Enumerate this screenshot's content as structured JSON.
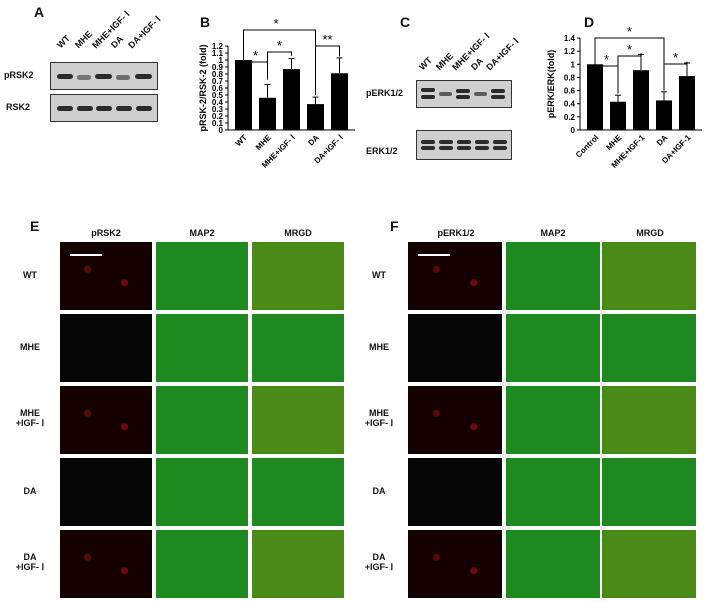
{
  "panels": {
    "a": "A",
    "b": "B",
    "c": "C",
    "d": "D",
    "e": "E",
    "f": "F"
  },
  "blotA": {
    "lanes": [
      "WT",
      "MHE",
      "MHE+IGF- Ⅰ",
      "DA",
      "DA+IGF- Ⅰ"
    ],
    "rows": [
      "pRSK2",
      "RSK2"
    ]
  },
  "blotC": {
    "lanes": [
      "WT",
      "MHE",
      "MHE+IGF- Ⅰ",
      "DA",
      "DA+IGF- Ⅰ"
    ],
    "rows": [
      "pERK1/2",
      "ERK1/2"
    ]
  },
  "chartB": {
    "ylabel": "pRSK-2/RSK-2 (fold)",
    "categories": [
      "WT",
      "MHE",
      "MHE+IGF- Ⅰ",
      "DA",
      "DA+IGF- Ⅰ"
    ],
    "values": [
      1.0,
      0.46,
      0.87,
      0.37,
      0.81
    ],
    "errors": [
      0.0,
      0.19,
      0.15,
      0.1,
      0.22
    ],
    "yticks": [
      "0",
      "0.1",
      "0.2",
      "0.3",
      "0.4",
      "0.5",
      "0.6",
      "0.7",
      "0.8",
      "0.9",
      "1",
      "1.1",
      "1.2"
    ],
    "sig": [
      "*",
      "*",
      "*",
      "**"
    ]
  },
  "chartD": {
    "ylabel": "pERK/ERK(fold)",
    "categories": [
      "Control",
      "MHE",
      "MHE+IGF-1",
      "DA",
      "DA+IGF-1"
    ],
    "values": [
      1.0,
      0.43,
      0.91,
      0.45,
      0.82
    ],
    "errors": [
      0.0,
      0.1,
      0.24,
      0.13,
      0.2
    ],
    "yticks": [
      "0",
      "0.2",
      "0.4",
      "0.6",
      "0.8",
      "1",
      "1.2",
      "1.4"
    ],
    "sig": [
      "*",
      "*",
      "*",
      "*"
    ]
  },
  "chart_data": [
    {
      "type": "bar",
      "title": "",
      "xlabel": "",
      "ylabel": "pRSK-2/RSK-2 (fold)",
      "categories": [
        "WT",
        "MHE",
        "MHE+IGF- Ⅰ",
        "DA",
        "DA+IGF- Ⅰ"
      ],
      "values": [
        1.0,
        0.46,
        0.87,
        0.37,
        0.81
      ],
      "errors": [
        0.0,
        0.19,
        0.15,
        0.1,
        0.22
      ],
      "ylim": [
        0,
        1.2
      ]
    },
    {
      "type": "bar",
      "title": "",
      "xlabel": "",
      "ylabel": "pERK/ERK(fold)",
      "categories": [
        "Control",
        "MHE",
        "MHE+IGF-1",
        "DA",
        "DA+IGF-1"
      ],
      "values": [
        1.0,
        0.43,
        0.91,
        0.45,
        0.82
      ],
      "errors": [
        0.0,
        0.1,
        0.24,
        0.13,
        0.2
      ],
      "ylim": [
        0,
        1.4
      ]
    }
  ],
  "ihcE": {
    "cols": [
      "pRSK2",
      "MAP2",
      "MRGD"
    ],
    "rows": [
      {
        "line1": "WT",
        "line2": ""
      },
      {
        "line1": "MHE",
        "line2": ""
      },
      {
        "line1": "MHE",
        "line2": "+IGF- Ⅰ"
      },
      {
        "line1": "DA",
        "line2": ""
      },
      {
        "line1": "DA",
        "line2": "+IGF- Ⅰ"
      }
    ]
  },
  "ihcF": {
    "cols": [
      "pERK1/2",
      "MAP2",
      "MRGD"
    ],
    "rows": [
      {
        "line1": "WT",
        "line2": ""
      },
      {
        "line1": "MHE",
        "line2": ""
      },
      {
        "line1": "MHE",
        "line2": "+IGF- Ⅰ"
      },
      {
        "line1": "DA",
        "line2": ""
      },
      {
        "line1": "DA",
        "line2": "+IGF- Ⅰ"
      }
    ]
  }
}
